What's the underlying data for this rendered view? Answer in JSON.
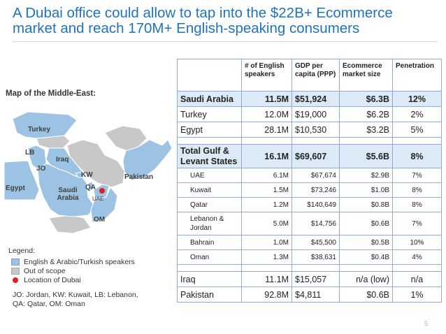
{
  "title": {
    "line1": "A Dubai office could allow to tap into the $22B+ Ecommerce",
    "line2": "market and reach 170M+ English-speaking consumers"
  },
  "map": {
    "heading": "Map of the Middle-East:",
    "labels": {
      "turkey": "Turkey",
      "lb": "LB",
      "jo": "JO",
      "iraq": "Iraq",
      "kw": "KW",
      "egypt": "Egypt",
      "saudi": "Saudi Arabia",
      "qa": "QA",
      "uae": "UAE",
      "om": "OM",
      "pakistan": "Pakistan"
    },
    "colors": {
      "english_arabic_turkish": "#9cc3e4",
      "out_of_scope": "#c8c8c8",
      "dubai": "#e01e1e"
    }
  },
  "legend": {
    "title": "Legend:",
    "items": [
      "English & Arabic/Turkish speakers",
      "Out of scope",
      "Location of Dubai"
    ],
    "abbr_line1": "JO: Jordan, KW: Kuwait, LB: Lebanon,",
    "abbr_line2": "QA: Qatar, OM: Oman"
  },
  "table": {
    "headers": [
      "# of English speakers",
      "GDP per capita (PPP)",
      "Ecommerce market size",
      "Penetration"
    ],
    "rows": {
      "saudi": [
        "Saudi Arabia",
        "11.5M",
        "$51,924",
        "$6.3B",
        "12%"
      ],
      "turkey": [
        "Turkey",
        "12.0M",
        "$19,000",
        "$6.2B",
        "2%"
      ],
      "egypt": [
        "Egypt",
        "28.1M",
        "$10,530",
        "$3.2B",
        "5%"
      ],
      "gulf": [
        "Total Gulf & Levant States",
        "16.1M",
        "$69,607",
        "$5.6B",
        "8%"
      ],
      "uae": [
        "UAE",
        "6.1M",
        "$67,674",
        "$2.9B",
        "7%"
      ],
      "kuwait": [
        "Kuwait",
        "1.5M",
        "$73,246",
        "$1.0B",
        "8%"
      ],
      "qatar": [
        "Qatar",
        "1.2M",
        "$140,649",
        "$0.8B",
        "8%"
      ],
      "lebanon": [
        "Lebanon & Jordan",
        "5.0M",
        "$14,756",
        "$0.6B",
        "7%"
      ],
      "bahrain": [
        "Bahrain",
        "1.0M",
        "$45,500",
        "$0.5B",
        "10%"
      ],
      "oman": [
        "Oman",
        "1.3M",
        "$38,631",
        "$0.4B",
        "4%"
      ],
      "iraq": [
        "Iraq",
        "11.1M",
        "$15,057",
        "n/a (low)",
        "n/a"
      ],
      "pakistan": [
        "Pakistan",
        "92.8M",
        "$4,811",
        "$0.6B",
        "1%"
      ]
    }
  },
  "page_number": "5"
}
